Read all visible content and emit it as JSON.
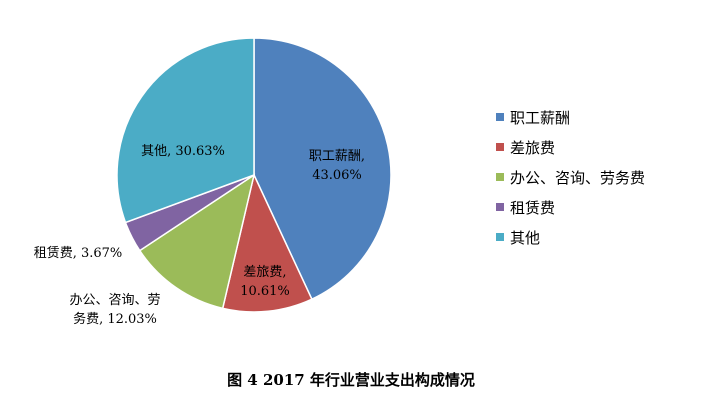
{
  "caption": "图 4   2017 年行业营业支出构成情况",
  "chart_data": {
    "type": "pie",
    "title": "",
    "legend_position": "right",
    "series": [
      {
        "label": "职工薪酬",
        "value": 43.06,
        "data_label": [
          "职工薪酬,",
          "43.06%"
        ],
        "color": "#4f81bd"
      },
      {
        "label": "差旅费",
        "value": 10.61,
        "data_label": [
          "差旅费,",
          "10.61%"
        ],
        "color": "#c0504d"
      },
      {
        "label": "办公、咨询、劳务费",
        "value": 12.03,
        "data_label": [
          "办公、咨询、劳",
          "务费, 12.03%"
        ],
        "color": "#9bbb59"
      },
      {
        "label": "租赁费",
        "value": 3.67,
        "data_label": [
          "租赁费, 3.67%"
        ],
        "color": "#8064a2"
      },
      {
        "label": "其他",
        "value": 30.63,
        "data_label": [
          "其他, 30.63%"
        ],
        "color": "#4bacc6"
      }
    ]
  }
}
